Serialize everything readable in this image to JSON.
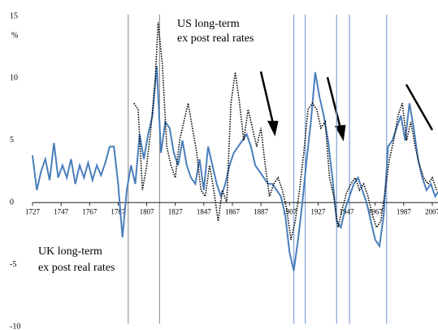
{
  "chart_data": {
    "type": "line",
    "annotations": [
      "US long-term",
      "ex post real rates",
      "UK long-term",
      "ex post real rates"
    ],
    "y_unit": "%",
    "xlim": [
      1727,
      2011
    ],
    "ylim": [
      -10,
      15
    ],
    "xticks": [
      1727,
      1747,
      1767,
      1787,
      1807,
      1827,
      1847,
      1867,
      1887,
      1907,
      1927,
      1947,
      1967,
      1987,
      2007
    ],
    "yticks": [
      -10,
      -5,
      0,
      5,
      10,
      15
    ],
    "vlines": [
      {
        "x": 1794,
        "color": "#999999"
      },
      {
        "x": 1816,
        "color": "#999999"
      },
      {
        "x": 1910,
        "color": "#7ea3d6"
      },
      {
        "x": 1918,
        "color": "#7ea3d6"
      },
      {
        "x": 1940,
        "color": "#7ea3d6"
      },
      {
        "x": 1949,
        "color": "#7ea3d6"
      },
      {
        "x": 1975,
        "color": "#7ea3d6"
      }
    ],
    "series": [
      {
        "name": "UK",
        "color": "#4a7ebb",
        "dash": false,
        "x": [
          1727,
          1730,
          1733,
          1736,
          1739,
          1742,
          1745,
          1748,
          1751,
          1754,
          1757,
          1760,
          1763,
          1766,
          1769,
          1772,
          1775,
          1778,
          1781,
          1784,
          1787,
          1790,
          1793,
          1796,
          1799,
          1802,
          1805,
          1808,
          1811,
          1814,
          1817,
          1820,
          1823,
          1826,
          1829,
          1832,
          1835,
          1838,
          1841,
          1844,
          1847,
          1850,
          1853,
          1856,
          1859,
          1862,
          1865,
          1868,
          1871,
          1874,
          1877,
          1880,
          1883,
          1886,
          1889,
          1892,
          1895,
          1898,
          1901,
          1904,
          1907,
          1910,
          1913,
          1916,
          1919,
          1922,
          1925,
          1928,
          1931,
          1934,
          1937,
          1940,
          1943,
          1946,
          1949,
          1952,
          1955,
          1958,
          1961,
          1964,
          1967,
          1970,
          1973,
          1976,
          1979,
          1982,
          1985,
          1988,
          1991,
          1994,
          1997,
          2000,
          2003,
          2006,
          2009,
          2012
        ],
        "values": [
          3.8,
          1.0,
          2.5,
          3.5,
          1.8,
          4.8,
          2.0,
          3.0,
          2.0,
          3.5,
          1.5,
          3.0,
          2.0,
          3.2,
          1.8,
          3.0,
          2.2,
          3.2,
          4.5,
          4.5,
          1.5,
          -2.8,
          1.0,
          3.0,
          1.5,
          5.5,
          3.5,
          5.5,
          7.0,
          11.0,
          4.0,
          6.5,
          6.0,
          4.0,
          3.0,
          5.0,
          3.0,
          2.0,
          1.5,
          3.5,
          1.0,
          4.5,
          3.0,
          1.5,
          0.5,
          1.5,
          3.0,
          4.0,
          4.5,
          5.0,
          5.5,
          4.5,
          3.0,
          2.5,
          2.0,
          1.5,
          1.5,
          1.0,
          0.5,
          -1.0,
          -4.0,
          -5.5,
          -3.0,
          0.0,
          3.5,
          6.5,
          10.5,
          8.5,
          7.0,
          5.0,
          2.0,
          -1.5,
          -2.0,
          -0.5,
          0.5,
          1.5,
          2.0,
          1.0,
          0.0,
          -1.5,
          -3.0,
          -3.5,
          -1.0,
          4.5,
          5.0,
          6.0,
          7.0,
          5.0,
          8.0,
          6.0,
          3.5,
          2.0,
          1.0,
          1.5,
          0.5,
          1.0
        ]
      },
      {
        "name": "US",
        "color": "#000000",
        "dash": true,
        "x": [
          1798,
          1801,
          1804,
          1807,
          1810,
          1813,
          1815,
          1818,
          1821,
          1824,
          1827,
          1830,
          1833,
          1836,
          1839,
          1842,
          1845,
          1848,
          1851,
          1854,
          1857,
          1860,
          1863,
          1866,
          1869,
          1872,
          1875,
          1878,
          1881,
          1884,
          1887,
          1890,
          1893,
          1896,
          1899,
          1902,
          1905,
          1908,
          1911,
          1914,
          1917,
          1920,
          1923,
          1926,
          1929,
          1932,
          1935,
          1938,
          1941,
          1944,
          1947,
          1950,
          1953,
          1956,
          1959,
          1962,
          1965,
          1968,
          1971,
          1974,
          1977,
          1980,
          1983,
          1986,
          1989,
          1992,
          1995,
          1998,
          2001,
          2004,
          2007,
          2010
        ],
        "values": [
          8.0,
          7.5,
          1.0,
          3.0,
          6.0,
          10.0,
          14.5,
          11.0,
          4.5,
          3.0,
          2.0,
          5.0,
          6.5,
          8.0,
          6.0,
          4.0,
          1.0,
          0.5,
          3.0,
          1.0,
          -1.5,
          1.0,
          0.0,
          8.0,
          10.5,
          8.0,
          5.0,
          7.5,
          6.0,
          4.5,
          6.0,
          3.0,
          0.5,
          1.5,
          2.0,
          1.0,
          -0.5,
          -3.0,
          -1.5,
          1.0,
          4.0,
          7.5,
          8.0,
          7.5,
          6.0,
          6.5,
          2.0,
          0.5,
          -2.0,
          -0.5,
          0.8,
          1.5,
          2.0,
          1.0,
          1.5,
          0.5,
          -1.0,
          -2.0,
          -1.5,
          1.0,
          3.5,
          5.0,
          7.0,
          8.0,
          5.0,
          6.5,
          4.5,
          3.0,
          2.0,
          1.5,
          2.0,
          1.0
        ]
      }
    ]
  }
}
